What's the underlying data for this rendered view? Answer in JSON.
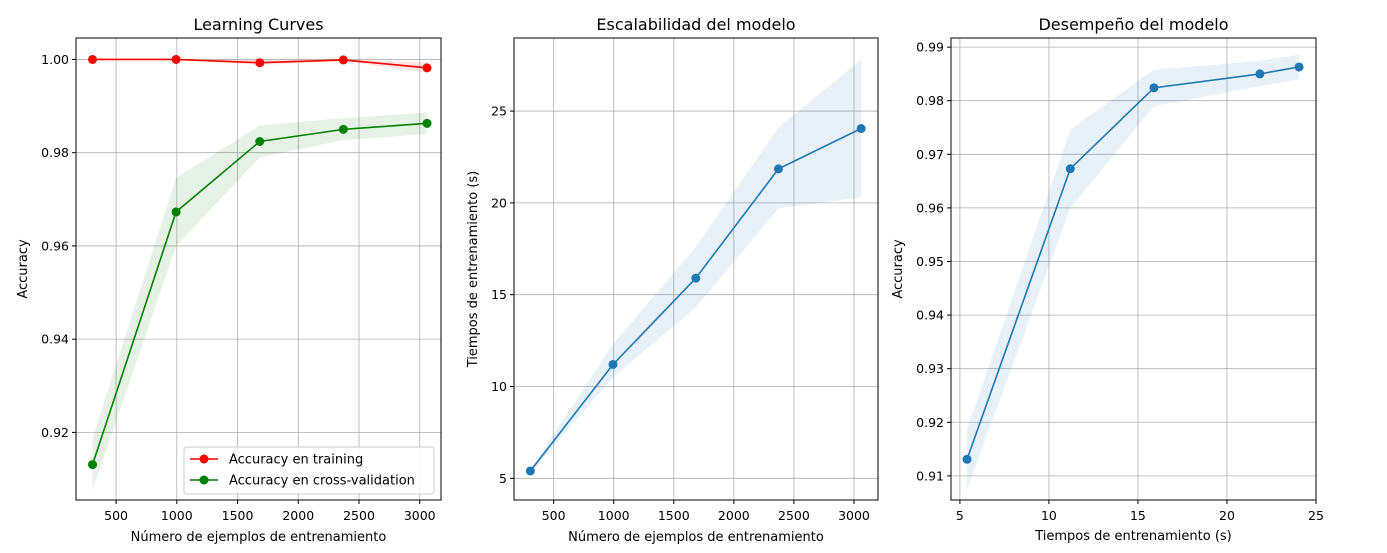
{
  "figure": {
    "background": "#ffffff",
    "grid_color": "#b0b0b0"
  },
  "chart_data": [
    {
      "type": "line",
      "title": "Learning Curves",
      "xlabel": "Número de ejemplos de entrenamiento",
      "ylabel": "Accuracy",
      "xlim": [
        170,
        3175
      ],
      "ylim": [
        0.9055,
        1.0046
      ],
      "xticks": [
        500,
        1000,
        1500,
        2000,
        2500,
        3000
      ],
      "xtick_labels": [
        "500",
        "1000",
        "1500",
        "2000",
        "2500",
        "3000"
      ],
      "yticks": [
        0.92,
        0.94,
        0.96,
        0.98,
        1.0
      ],
      "ytick_labels": [
        "0.92",
        "0.94",
        "0.96",
        "0.98",
        "1.00"
      ],
      "grid": true,
      "legend": "lower-right",
      "series": [
        {
          "name": "Accuracy en training",
          "color": "#ff0000",
          "x": [
            306,
            994,
            1683,
            2371,
            3060
          ],
          "y": [
            1.0,
            1.0,
            0.9993,
            0.9999,
            0.9982
          ],
          "band_low": [
            1.0,
            1.0,
            0.9988,
            0.9996,
            0.9972
          ],
          "band_high": [
            1.0,
            1.0,
            0.9999,
            1.0,
            0.9994
          ]
        },
        {
          "name": "Accuracy en cross-validation",
          "color": "#008000",
          "x": [
            306,
            994,
            1683,
            2371,
            3060
          ],
          "y": [
            0.9131,
            0.9673,
            0.9824,
            0.985,
            0.9863
          ],
          "band_low": [
            0.9075,
            0.96,
            0.979,
            0.9827,
            0.984
          ],
          "band_high": [
            0.9187,
            0.9746,
            0.9858,
            0.9874,
            0.9886
          ]
        }
      ]
    },
    {
      "type": "line",
      "title": "Escalabilidad del modelo",
      "xlabel": "Número de ejemplos de entrenamiento",
      "ylabel": "Tiempos de entrenamiento (s)",
      "xlim": [
        170,
        3200
      ],
      "ylim": [
        3.82,
        28.98
      ],
      "xticks": [
        500,
        1000,
        1500,
        2000,
        2500,
        3000
      ],
      "xtick_labels": [
        "500",
        "1000",
        "1500",
        "2000",
        "2500",
        "3000"
      ],
      "yticks": [
        5,
        10,
        15,
        20,
        25
      ],
      "ytick_labels": [
        "5",
        "10",
        "15",
        "20",
        "25"
      ],
      "grid": true,
      "series": [
        {
          "color": "#1f77b4",
          "x": [
            306,
            994,
            1683,
            2371,
            3060
          ],
          "y": [
            5.4,
            11.2,
            15.9,
            21.85,
            24.05
          ],
          "band_low": [
            5.3,
            10.5,
            14.3,
            19.7,
            20.3
          ],
          "band_high": [
            5.5,
            12.3,
            17.6,
            24.1,
            27.8
          ]
        }
      ]
    },
    {
      "type": "line",
      "title": "Desempeño del modelo",
      "xlabel": "Tiempos de entrenamiento (s)",
      "ylabel": "Accuracy",
      "xlim": [
        4.5,
        25.0
      ],
      "ylim": [
        0.9055,
        0.9917
      ],
      "xticks": [
        5,
        10,
        15,
        20,
        25
      ],
      "xtick_labels": [
        "5",
        "10",
        "15",
        "20",
        "25"
      ],
      "yticks": [
        0.91,
        0.92,
        0.93,
        0.94,
        0.95,
        0.96,
        0.97,
        0.98,
        0.99
      ],
      "ytick_labels": [
        "0.91",
        "0.92",
        "0.93",
        "0.94",
        "0.95",
        "0.96",
        "0.97",
        "0.98",
        "0.99"
      ],
      "grid": true,
      "series": [
        {
          "color": "#1f77b4",
          "x": [
            5.4,
            11.2,
            15.9,
            21.85,
            24.05
          ],
          "y": [
            0.9131,
            0.9673,
            0.9824,
            0.985,
            0.9863
          ],
          "band_low": [
            0.9075,
            0.96,
            0.979,
            0.9827,
            0.984
          ],
          "band_high": [
            0.9187,
            0.9746,
            0.9858,
            0.9874,
            0.9886
          ]
        }
      ]
    }
  ]
}
